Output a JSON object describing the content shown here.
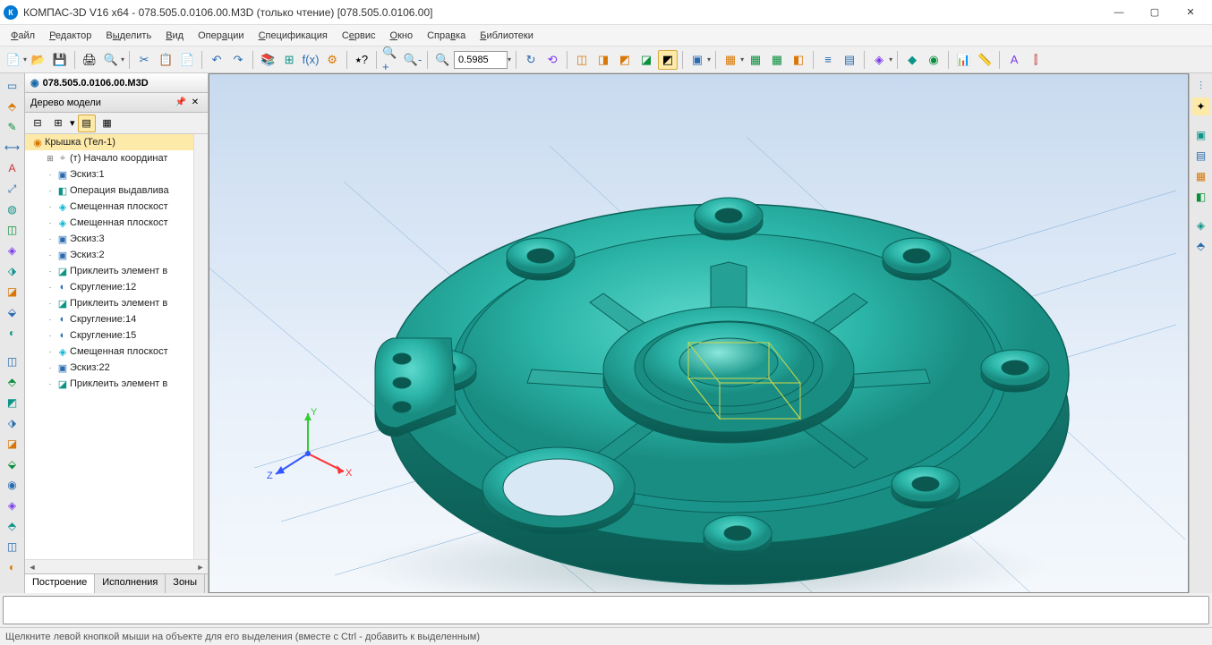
{
  "window": {
    "title": "КОМПАС-3D V16  x64 - 078.505.0.0106.00.M3D (только чтение) [078.505.0.0106.00]",
    "min": "—",
    "max": "▢",
    "close": "✕"
  },
  "menu": {
    "items": [
      "Файл",
      "Редактор",
      "Выделить",
      "Вид",
      "Операции",
      "Спецификация",
      "Сервис",
      "Окно",
      "Справка",
      "Библиотеки"
    ]
  },
  "tabs": {
    "doc": "078.505.0.0106.00.M3D"
  },
  "tree": {
    "header": "Дерево модели",
    "root": "Крышка (Тел-1)",
    "nodes": [
      {
        "icon": "⌖",
        "label": "(т) Начало координат",
        "indent": 1,
        "exp": "⊞",
        "color": "#888"
      },
      {
        "icon": "▣",
        "label": "Эскиз:1",
        "indent": 1,
        "color": "#2b6cb0"
      },
      {
        "icon": "◧",
        "label": "Операция выдавлива",
        "indent": 1,
        "color": "#0d9488"
      },
      {
        "icon": "◈",
        "label": "Смещенная плоскост",
        "indent": 1,
        "color": "#06b6d4"
      },
      {
        "icon": "◈",
        "label": "Смещенная плоскост",
        "indent": 1,
        "color": "#06b6d4"
      },
      {
        "icon": "▣",
        "label": "Эскиз:3",
        "indent": 1,
        "color": "#2b6cb0"
      },
      {
        "icon": "▣",
        "label": "Эскиз:2",
        "indent": 1,
        "color": "#2b6cb0"
      },
      {
        "icon": "◪",
        "label": "Приклеить элемент в",
        "indent": 1,
        "color": "#0d9488"
      },
      {
        "icon": "◐",
        "label": "Скругление:12",
        "indent": 1,
        "color": "#2b6cb0"
      },
      {
        "icon": "◪",
        "label": "Приклеить элемент в",
        "indent": 1,
        "color": "#0d9488"
      },
      {
        "icon": "◐",
        "label": "Скругление:14",
        "indent": 1,
        "color": "#2b6cb0"
      },
      {
        "icon": "◐",
        "label": "Скругление:15",
        "indent": 1,
        "color": "#2b6cb0"
      },
      {
        "icon": "◈",
        "label": "Смещенная плоскост",
        "indent": 1,
        "color": "#06b6d4"
      },
      {
        "icon": "▣",
        "label": "Эскиз:22",
        "indent": 1,
        "color": "#2b6cb0"
      },
      {
        "icon": "◪",
        "label": "Приклеить элемент в",
        "indent": 1,
        "color": "#0d9488"
      }
    ],
    "tabs": [
      "Построение",
      "Исполнения",
      "Зоны"
    ]
  },
  "toolbar": {
    "zoom_value": "0.5985"
  },
  "status": {
    "text": "Щелкните левой кнопкой мыши на объекте для его выделения (вместе с Ctrl - добавить к выделенным)"
  },
  "viewport": {
    "bg_top": "#c8daef",
    "bg_bottom": "#f4f8fc",
    "model_color": "#2bb5a8",
    "model_edge": "#0a6158",
    "model_dark": "#0e7c73",
    "axes": {
      "x": "#ff3333",
      "y": "#33cc33",
      "z": "#3355ff"
    }
  }
}
